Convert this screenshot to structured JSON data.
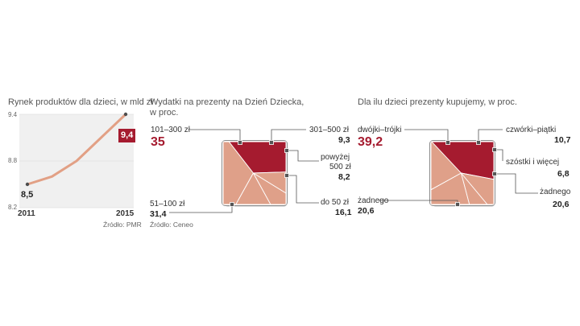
{
  "colors": {
    "accent": "#a51b2f",
    "pie_light": "#dfa089",
    "line": "#e2a085",
    "panel": "#f0f0f0"
  },
  "chart_data": [
    {
      "type": "line",
      "title": "Rynek produktów dla dzieci, w mld zł",
      "x": [
        2011,
        2012,
        2013,
        2014,
        2015
      ],
      "values": [
        8.5,
        8.6,
        8.8,
        9.1,
        9.4
      ],
      "ylim": [
        8.2,
        9.4
      ],
      "yticks": [
        "9.4",
        "8.8",
        "8.2"
      ],
      "xticks": [
        "2011",
        "2015"
      ],
      "start_label": "8,5",
      "end_label": "9,4",
      "source": "Źródło: PMR"
    },
    {
      "type": "pie",
      "title_lines": [
        "Wydatki na prezenty na Dzień Dziecka,",
        "w proc."
      ],
      "source": "Źródło: Ceneo",
      "slices": [
        {
          "name": "101–300 zł",
          "value": 35,
          "value_label": "35"
        },
        {
          "name": "301–500 zł",
          "value": 9.3,
          "value_label": "9,3"
        },
        {
          "name": "powyżej 500 zł",
          "label_lines": [
            "powyżej",
            "500 zł"
          ],
          "value": 8.2,
          "value_label": "8,2"
        },
        {
          "name": "do 50 zł",
          "value": 16.1,
          "value_label": "16,1"
        },
        {
          "name": "51–100 zł",
          "value": 31.4,
          "value_label": "31,4"
        }
      ]
    },
    {
      "type": "pie",
      "title": "Dla ilu dzieci prezenty kupujemy, w proc.",
      "slices": [
        {
          "name": "dwójki–trójki",
          "value": 39.2,
          "value_label": "39,2"
        },
        {
          "name": "czwórki–piątki",
          "value": 10.7,
          "value_label": "10,7"
        },
        {
          "name": "szóstki i więcej",
          "value": 6.8,
          "value_label": "6,8"
        },
        {
          "name": "żadnego",
          "value": 20.6,
          "value_label": "20,6"
        },
        {
          "name": "żadnego",
          "value": 20.6,
          "value_label": "20,6"
        }
      ]
    }
  ]
}
